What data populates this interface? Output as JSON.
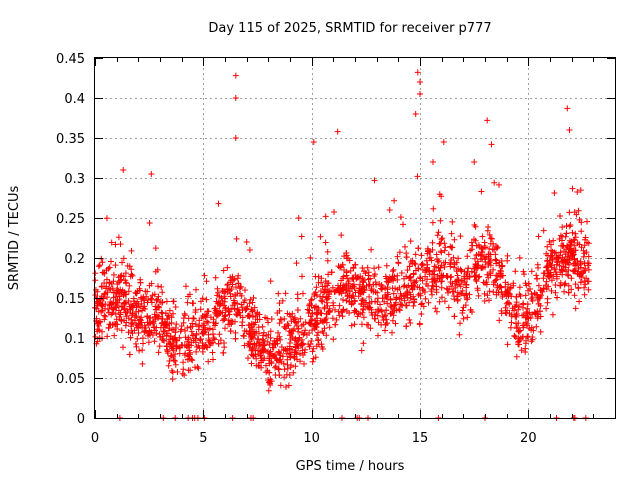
{
  "chart_data": {
    "type": "scatter",
    "title": "Day 115 of 2025, SRMTID for receiver p777",
    "xlabel": "GPS time / hours",
    "ylabel": "SRMTID / TECUs",
    "xlim": [
      0,
      24
    ],
    "ylim": [
      0,
      0.45
    ],
    "xticks": [
      "0",
      "5",
      "10",
      "15",
      "20"
    ],
    "yticks": [
      "0",
      "0.05",
      "0.1",
      "0.15",
      "0.2",
      "0.25",
      "0.3",
      "0.35",
      "0.4",
      "0.45"
    ],
    "grid": true,
    "marker": "+",
    "color": "#ff0000",
    "trend": [
      {
        "x": 0.0,
        "y": 0.14
      },
      {
        "x": 0.5,
        "y": 0.15
      },
      {
        "x": 1.0,
        "y": 0.15
      },
      {
        "x": 1.5,
        "y": 0.14
      },
      {
        "x": 2.0,
        "y": 0.13
      },
      {
        "x": 2.5,
        "y": 0.13
      },
      {
        "x": 3.0,
        "y": 0.12
      },
      {
        "x": 3.5,
        "y": 0.1
      },
      {
        "x": 4.0,
        "y": 0.09
      },
      {
        "x": 4.5,
        "y": 0.1
      },
      {
        "x": 5.0,
        "y": 0.11
      },
      {
        "x": 5.5,
        "y": 0.12
      },
      {
        "x": 6.0,
        "y": 0.14
      },
      {
        "x": 6.5,
        "y": 0.15
      },
      {
        "x": 7.0,
        "y": 0.12
      },
      {
        "x": 7.5,
        "y": 0.09
      },
      {
        "x": 8.0,
        "y": 0.08
      },
      {
        "x": 8.5,
        "y": 0.09
      },
      {
        "x": 9.0,
        "y": 0.09
      },
      {
        "x": 9.5,
        "y": 0.1
      },
      {
        "x": 10.0,
        "y": 0.12
      },
      {
        "x": 10.5,
        "y": 0.14
      },
      {
        "x": 11.0,
        "y": 0.15
      },
      {
        "x": 11.5,
        "y": 0.16
      },
      {
        "x": 12.0,
        "y": 0.16
      },
      {
        "x": 12.5,
        "y": 0.15
      },
      {
        "x": 13.0,
        "y": 0.14
      },
      {
        "x": 13.5,
        "y": 0.15
      },
      {
        "x": 14.0,
        "y": 0.16
      },
      {
        "x": 14.5,
        "y": 0.16
      },
      {
        "x": 15.0,
        "y": 0.17
      },
      {
        "x": 15.5,
        "y": 0.18
      },
      {
        "x": 16.0,
        "y": 0.19
      },
      {
        "x": 16.5,
        "y": 0.18
      },
      {
        "x": 17.0,
        "y": 0.16
      },
      {
        "x": 17.5,
        "y": 0.19
      },
      {
        "x": 18.0,
        "y": 0.2
      },
      {
        "x": 18.5,
        "y": 0.19
      },
      {
        "x": 19.0,
        "y": 0.15
      },
      {
        "x": 19.5,
        "y": 0.12
      },
      {
        "x": 20.0,
        "y": 0.13
      },
      {
        "x": 20.5,
        "y": 0.15
      },
      {
        "x": 21.0,
        "y": 0.19
      },
      {
        "x": 21.5,
        "y": 0.2
      },
      {
        "x": 22.0,
        "y": 0.2
      },
      {
        "x": 22.5,
        "y": 0.19
      },
      {
        "x": 22.8,
        "y": 0.18
      }
    ],
    "peaks": [
      {
        "x": 1.3,
        "y": 0.31
      },
      {
        "x": 2.6,
        "y": 0.305
      },
      {
        "x": 6.5,
        "y": 0.428
      },
      {
        "x": 6.5,
        "y": 0.4
      },
      {
        "x": 6.5,
        "y": 0.35
      },
      {
        "x": 11.2,
        "y": 0.358
      },
      {
        "x": 10.1,
        "y": 0.345
      },
      {
        "x": 14.9,
        "y": 0.432
      },
      {
        "x": 15.0,
        "y": 0.42
      },
      {
        "x": 15.0,
        "y": 0.405
      },
      {
        "x": 14.8,
        "y": 0.38
      },
      {
        "x": 18.1,
        "y": 0.372
      },
      {
        "x": 21.8,
        "y": 0.387
      },
      {
        "x": 21.9,
        "y": 0.36
      },
      {
        "x": 16.1,
        "y": 0.345
      },
      {
        "x": 18.3,
        "y": 0.342
      },
      {
        "x": 17.5,
        "y": 0.32
      },
      {
        "x": 15.6,
        "y": 0.32
      },
      {
        "x": 12.9,
        "y": 0.297
      },
      {
        "x": 5.7,
        "y": 0.268
      },
      {
        "x": 13.6,
        "y": 0.26
      },
      {
        "x": 7.0,
        "y": 0.22
      },
      {
        "x": 9.4,
        "y": 0.25
      }
    ],
    "zero_points_x": [
      1.15,
      3.15,
      3.7,
      4.3,
      4.5,
      4.6,
      4.75,
      5.05,
      6.35,
      7.2,
      7.3,
      11.4,
      12.1,
      12.2,
      12.6,
      15.85,
      18.0,
      21.3,
      22.1,
      22.15,
      22.65
    ]
  }
}
